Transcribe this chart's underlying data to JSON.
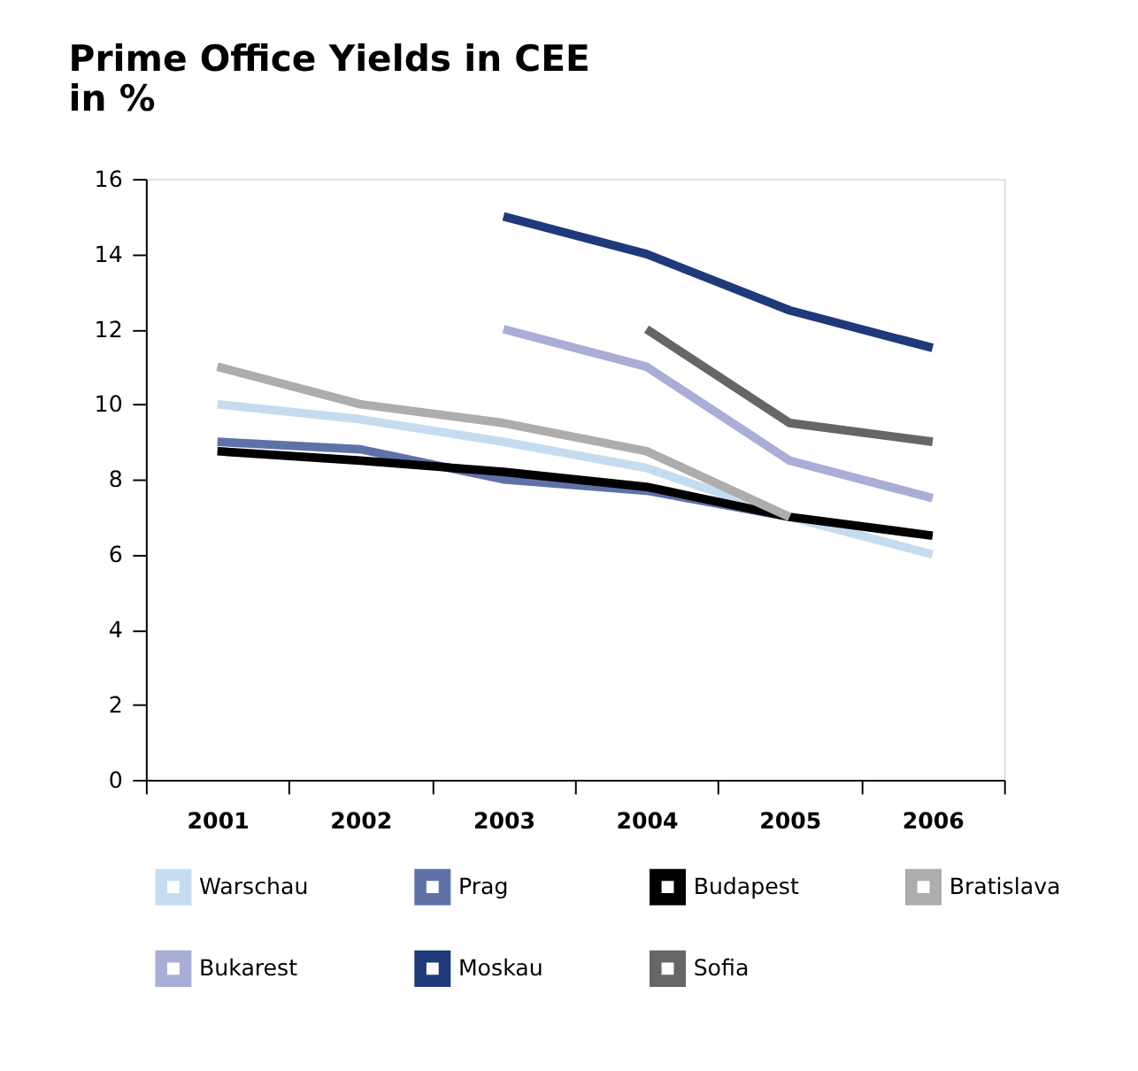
{
  "chart_data": {
    "type": "line",
    "title": [
      "Prime Office Yields in CEE",
      "in %"
    ],
    "categories": [
      "2001",
      "2002",
      "2003",
      "2004",
      "2005",
      "2006"
    ],
    "ylim": [
      0,
      16
    ],
    "yticks": [
      0,
      2,
      4,
      6,
      8,
      10,
      12,
      14,
      16
    ],
    "grid": false,
    "legend": "bottom",
    "marker": "none",
    "line_style": "solid",
    "series": [
      {
        "name": "Warschau",
        "color": "#c5dcf0",
        "values": [
          10,
          9.6,
          9,
          8.3,
          7,
          6
        ]
      },
      {
        "name": "Prag",
        "color": "#5f72a8",
        "values": [
          9,
          8.8,
          8,
          7.7,
          7,
          null
        ]
      },
      {
        "name": "Budapest",
        "color": "#000000",
        "values": [
          8.75,
          8.5,
          8.2,
          7.8,
          7,
          6.5
        ]
      },
      {
        "name": "Bratislava",
        "color": "#adadad",
        "values": [
          11,
          10,
          9.5,
          8.75,
          7,
          null
        ]
      },
      {
        "name": "Bukarest",
        "color": "#a9aed6",
        "values": [
          null,
          null,
          12,
          11,
          8.5,
          7.5
        ]
      },
      {
        "name": "Moskau",
        "color": "#1f3a7a",
        "values": [
          null,
          null,
          15,
          14,
          12.5,
          11.5
        ]
      },
      {
        "name": "Sofia",
        "color": "#666666",
        "values": [
          null,
          null,
          null,
          12,
          9.5,
          9
        ]
      }
    ]
  }
}
